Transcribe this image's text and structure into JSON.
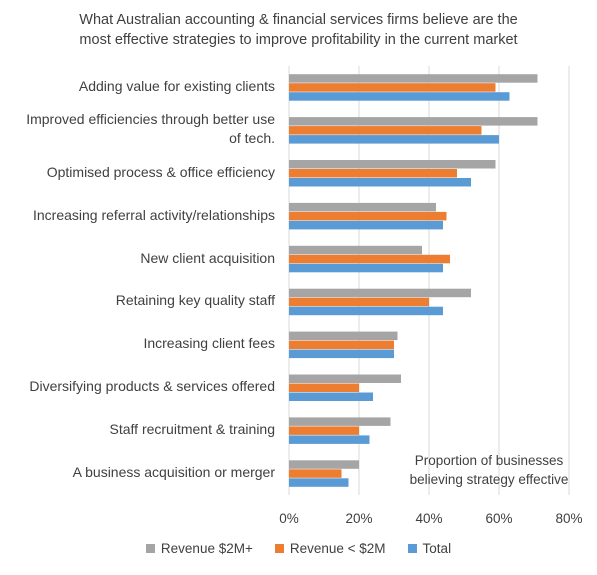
{
  "chart_data": {
    "type": "bar",
    "orientation": "horizontal",
    "title_lines": [
      "What Australian accounting & financial services firms believe are the",
      "most effective strategies to improve profitability in the current market"
    ],
    "categories": [
      [
        "Adding value for existing clients"
      ],
      [
        "Improved efficiencies through better use",
        "of tech."
      ],
      [
        "Optimised process & office efficiency"
      ],
      [
        "Increasing referral activity/relationships"
      ],
      [
        "New client acquisition"
      ],
      [
        "Retaining key quality staff"
      ],
      [
        "Increasing client fees"
      ],
      [
        "Diversifying products & services offered"
      ],
      [
        "Staff recruitment & training"
      ],
      [
        "A business acquisition or merger"
      ]
    ],
    "series": [
      {
        "name": "Revenue $2M+",
        "color": "#a5a5a5",
        "values": [
          0.71,
          0.71,
          0.59,
          0.42,
          0.38,
          0.52,
          0.31,
          0.32,
          0.29,
          0.2
        ]
      },
      {
        "name": "Revenue < $2M",
        "color": "#ed7d31",
        "values": [
          0.59,
          0.55,
          0.48,
          0.45,
          0.46,
          0.4,
          0.3,
          0.2,
          0.2,
          0.15
        ]
      },
      {
        "name": "Total",
        "color": "#5b9bd5",
        "values": [
          0.63,
          0.6,
          0.52,
          0.44,
          0.44,
          0.44,
          0.3,
          0.24,
          0.23,
          0.17
        ]
      }
    ],
    "xlim": [
      0,
      0.8
    ],
    "xticks": [
      "0%",
      "20%",
      "40%",
      "60%",
      "80%"
    ],
    "grid": "vertical",
    "legend_position": "bottom",
    "annotation_lines": [
      "Proportion  of businesses",
      "believing strategy effective"
    ]
  }
}
